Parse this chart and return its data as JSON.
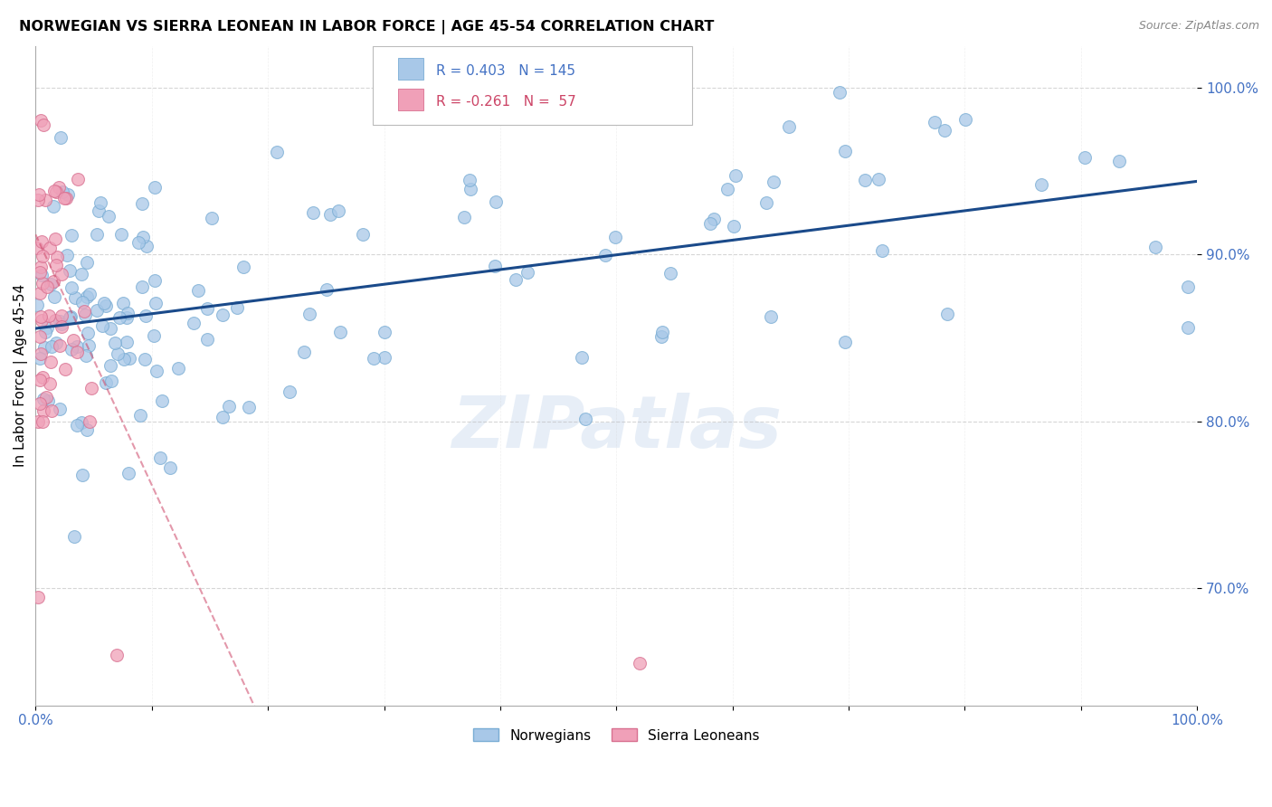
{
  "title": "NORWEGIAN VS SIERRA LEONEAN IN LABOR FORCE | AGE 45-54 CORRELATION CHART",
  "source": "Source: ZipAtlas.com",
  "ylabel": "In Labor Force | Age 45-54",
  "xlim": [
    0.0,
    1.0
  ],
  "ylim": [
    0.63,
    1.025
  ],
  "yticks": [
    0.7,
    0.8,
    0.9,
    1.0
  ],
  "ytick_labels": [
    "70.0%",
    "80.0%",
    "90.0%",
    "100.0%"
  ],
  "xticks": [
    0.0,
    0.1,
    0.2,
    0.3,
    0.4,
    0.5,
    0.6,
    0.7,
    0.8,
    0.9,
    1.0
  ],
  "xtick_labels": [
    "0.0%",
    "",
    "",
    "",
    "",
    "",
    "",
    "",
    "",
    "",
    "100.0%"
  ],
  "norwegian_R": 0.403,
  "norwegian_N": 145,
  "sierraleonean_R": -0.261,
  "sierraleonean_N": 57,
  "norwegian_color": "#a8c8e8",
  "norwegian_edge": "#7aadd4",
  "sierraleonean_color": "#f0a0b8",
  "sierraleonean_edge": "#d87090",
  "trend_norwegian_color": "#1a4a8a",
  "trend_sierraleonean_color": "#cc4466",
  "background_color": "#ffffff",
  "watermark": "ZIPatlas",
  "title_fontsize": 11.5,
  "axis_label_fontsize": 11,
  "tick_label_color": "#4472c4",
  "tick_label_fontsize": 11,
  "legend_text_color_nor": "#4472c4",
  "legend_text_color_sl": "#cc4466"
}
